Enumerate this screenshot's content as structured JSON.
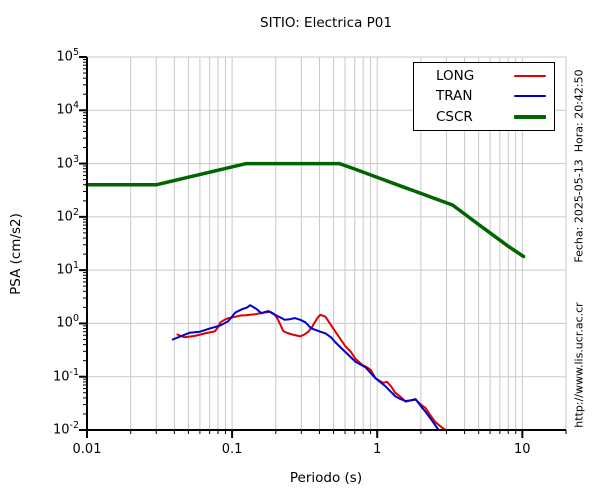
{
  "header": {
    "title": "SITIO: Electrica P01"
  },
  "side_notes": {
    "fecha": "Fecha: 2025-05-13  Hora: 20:42:50",
    "url": "http://www.lis.ucr.ac.cr"
  },
  "colors": {
    "long": "#dd0000",
    "tran": "#0000cc",
    "cscr": "#006400",
    "grid": "#c8c8c8",
    "axis": "#000000",
    "background": "#ffffff"
  },
  "chart_data": {
    "type": "line",
    "title": "SITIO: Electrica P01",
    "xlabel": "Periodo (s)",
    "ylabel": "PSA (cm/s2)",
    "xscale": "log",
    "yscale": "log",
    "xlim": [
      0.01,
      20
    ],
    "ylim": [
      0.01,
      100000
    ],
    "x_major_ticks": [
      0.01,
      0.1,
      1,
      10
    ],
    "x_tick_labels": [
      "0.01",
      "0.1",
      "1",
      "10"
    ],
    "y_tick_exponents": [
      5,
      4,
      3,
      2,
      1,
      0,
      -1,
      -2
    ],
    "grid": "vertical gridlines at all log minor+major ticks; horizontal gridlines at decades only",
    "legend": {
      "position": "top-right"
    },
    "series": [
      {
        "name": "LONG",
        "color": "#dd0000",
        "width": 2,
        "points": [
          [
            0.042,
            0.62
          ],
          [
            0.047,
            0.55
          ],
          [
            0.055,
            0.58
          ],
          [
            0.065,
            0.65
          ],
          [
            0.076,
            0.71
          ],
          [
            0.08,
            0.85
          ],
          [
            0.083,
            1.05
          ],
          [
            0.09,
            1.2
          ],
          [
            0.095,
            1.26
          ],
          [
            0.105,
            1.33
          ],
          [
            0.114,
            1.41
          ],
          [
            0.125,
            1.43
          ],
          [
            0.133,
            1.45
          ],
          [
            0.148,
            1.5
          ],
          [
            0.16,
            1.58
          ],
          [
            0.175,
            1.62
          ],
          [
            0.183,
            1.66
          ],
          [
            0.195,
            1.5
          ],
          [
            0.205,
            1.25
          ],
          [
            0.215,
            0.95
          ],
          [
            0.225,
            0.72
          ],
          [
            0.24,
            0.66
          ],
          [
            0.26,
            0.62
          ],
          [
            0.28,
            0.59
          ],
          [
            0.295,
            0.57
          ],
          [
            0.315,
            0.62
          ],
          [
            0.335,
            0.7
          ],
          [
            0.355,
            0.85
          ],
          [
            0.375,
            1.1
          ],
          [
            0.39,
            1.3
          ],
          [
            0.405,
            1.45
          ],
          [
            0.42,
            1.4
          ],
          [
            0.44,
            1.33
          ],
          [
            0.475,
            0.97
          ],
          [
            0.515,
            0.7
          ],
          [
            0.56,
            0.5
          ],
          [
            0.605,
            0.37
          ],
          [
            0.655,
            0.3
          ],
          [
            0.71,
            0.215
          ],
          [
            0.79,
            0.166
          ],
          [
            0.85,
            0.15
          ],
          [
            0.9,
            0.135
          ],
          [
            0.97,
            0.095
          ],
          [
            1.05,
            0.082
          ],
          [
            1.1,
            0.077
          ],
          [
            1.17,
            0.08
          ],
          [
            1.25,
            0.065
          ],
          [
            1.33,
            0.05
          ],
          [
            1.45,
            0.042
          ],
          [
            1.57,
            0.034
          ],
          [
            1.7,
            0.036
          ],
          [
            1.84,
            0.037
          ],
          [
            2.0,
            0.03
          ],
          [
            2.15,
            0.026
          ],
          [
            2.35,
            0.018
          ],
          [
            2.52,
            0.014
          ],
          [
            2.7,
            0.012
          ],
          [
            2.95,
            0.01
          ]
        ]
      },
      {
        "name": "TRAN",
        "color": "#0000cc",
        "width": 2,
        "points": [
          [
            0.039,
            0.5
          ],
          [
            0.044,
            0.57
          ],
          [
            0.051,
            0.67
          ],
          [
            0.06,
            0.7
          ],
          [
            0.07,
            0.8
          ],
          [
            0.083,
            0.92
          ],
          [
            0.094,
            1.1
          ],
          [
            0.105,
            1.6
          ],
          [
            0.117,
            1.85
          ],
          [
            0.127,
            2.0
          ],
          [
            0.133,
            2.2
          ],
          [
            0.141,
            2.0
          ],
          [
            0.148,
            1.85
          ],
          [
            0.159,
            1.55
          ],
          [
            0.17,
            1.65
          ],
          [
            0.178,
            1.7
          ],
          [
            0.197,
            1.45
          ],
          [
            0.215,
            1.3
          ],
          [
            0.23,
            1.17
          ],
          [
            0.25,
            1.2
          ],
          [
            0.27,
            1.26
          ],
          [
            0.295,
            1.17
          ],
          [
            0.32,
            1.05
          ],
          [
            0.35,
            0.81
          ],
          [
            0.405,
            0.7
          ],
          [
            0.44,
            0.65
          ],
          [
            0.48,
            0.55
          ],
          [
            0.515,
            0.44
          ],
          [
            0.605,
            0.29
          ],
          [
            0.71,
            0.19
          ],
          [
            0.83,
            0.15
          ],
          [
            0.97,
            0.094
          ],
          [
            1.14,
            0.066
          ],
          [
            1.33,
            0.043
          ],
          [
            1.45,
            0.038
          ],
          [
            1.57,
            0.035
          ],
          [
            1.7,
            0.036
          ],
          [
            1.84,
            0.038
          ],
          [
            2.0,
            0.028
          ],
          [
            2.15,
            0.022
          ],
          [
            2.41,
            0.0145
          ],
          [
            2.65,
            0.01
          ]
        ]
      },
      {
        "name": "CSCR",
        "color": "#006400",
        "width": 3.5,
        "points": [
          [
            0.01,
            400
          ],
          [
            0.03,
            400
          ],
          [
            0.125,
            1000
          ],
          [
            0.55,
            1000
          ],
          [
            0.7,
            790
          ],
          [
            1.0,
            550
          ],
          [
            1.5,
            367
          ],
          [
            2.0,
            275
          ],
          [
            2.5,
            220
          ],
          [
            3.3,
            167
          ],
          [
            4.0,
            113
          ],
          [
            5.0,
            72
          ],
          [
            6.0,
            50
          ],
          [
            8.0,
            28
          ],
          [
            10.2,
            18
          ]
        ]
      }
    ]
  }
}
